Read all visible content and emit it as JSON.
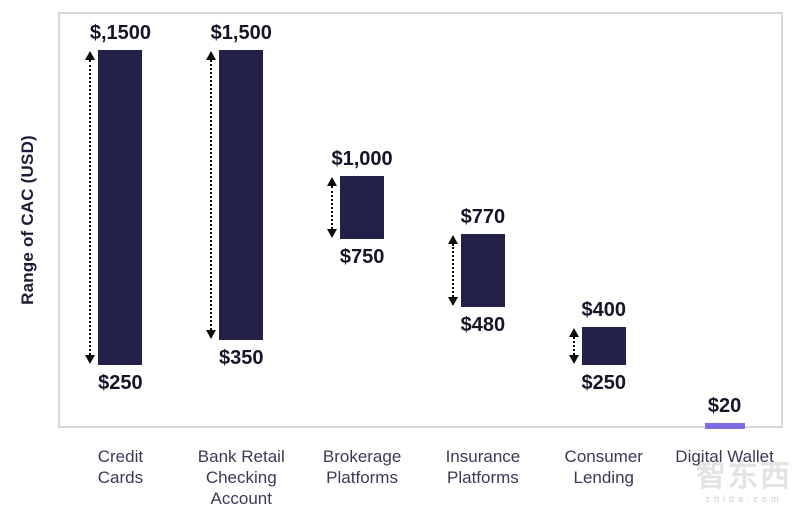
{
  "axis": {
    "y_label": "Range of CAC (USD)"
  },
  "watermark": {
    "cn": "智东西",
    "latin": "zhida.com"
  },
  "chart_data": {
    "type": "range-bar",
    "title": "",
    "xlabel": "",
    "ylabel": "Range of CAC (USD)",
    "ylim": [
      0,
      1650
    ],
    "grid": false,
    "legend": false,
    "unit": "USD",
    "categories": [
      {
        "id": "credit-cards",
        "label": "Credit Cards",
        "lines": [
          "Credit",
          "Cards"
        ],
        "style": "bar",
        "low": 250,
        "high": 1500,
        "low_label": "$250",
        "high_label": "$,1500"
      },
      {
        "id": "bank-retail-checking-account",
        "label": "Bank Retail Checking Account",
        "lines": [
          "Bank Retail",
          "Checking",
          "Account"
        ],
        "style": "bar",
        "low": 350,
        "high": 1500,
        "low_label": "$350",
        "high_label": "$1,500"
      },
      {
        "id": "brokerage-platforms",
        "label": "Brokerage Platforms",
        "lines": [
          "Brokerage",
          "Platforms"
        ],
        "style": "bar",
        "low": 750,
        "high": 1000,
        "low_label": "$750",
        "high_label": "$1,000"
      },
      {
        "id": "insurance-platforms",
        "label": "Insurance Platforms",
        "lines": [
          "Insurance",
          "Platforms"
        ],
        "style": "bar",
        "low": 480,
        "high": 770,
        "low_label": "$480",
        "high_label": "$770"
      },
      {
        "id": "consumer-lending",
        "label": "Consumer Lending",
        "lines": [
          "Consumer",
          "Lending"
        ],
        "style": "bar",
        "low": 250,
        "high": 400,
        "low_label": "$250",
        "high_label": "$400"
      },
      {
        "id": "digital-wallet",
        "label": "Digital Wallet",
        "lines": [
          "Digital Wallet"
        ],
        "style": "tick",
        "value": 20,
        "value_label": "$20"
      }
    ],
    "colors": {
      "bar": "#232147",
      "tick": "#7d6ce4",
      "arrow": "#0b0b0b",
      "plot_border": "#d8d8d8",
      "value_text": "#15152a",
      "category_text": "#3a3a57",
      "axis_text": "#1d1d38"
    }
  }
}
